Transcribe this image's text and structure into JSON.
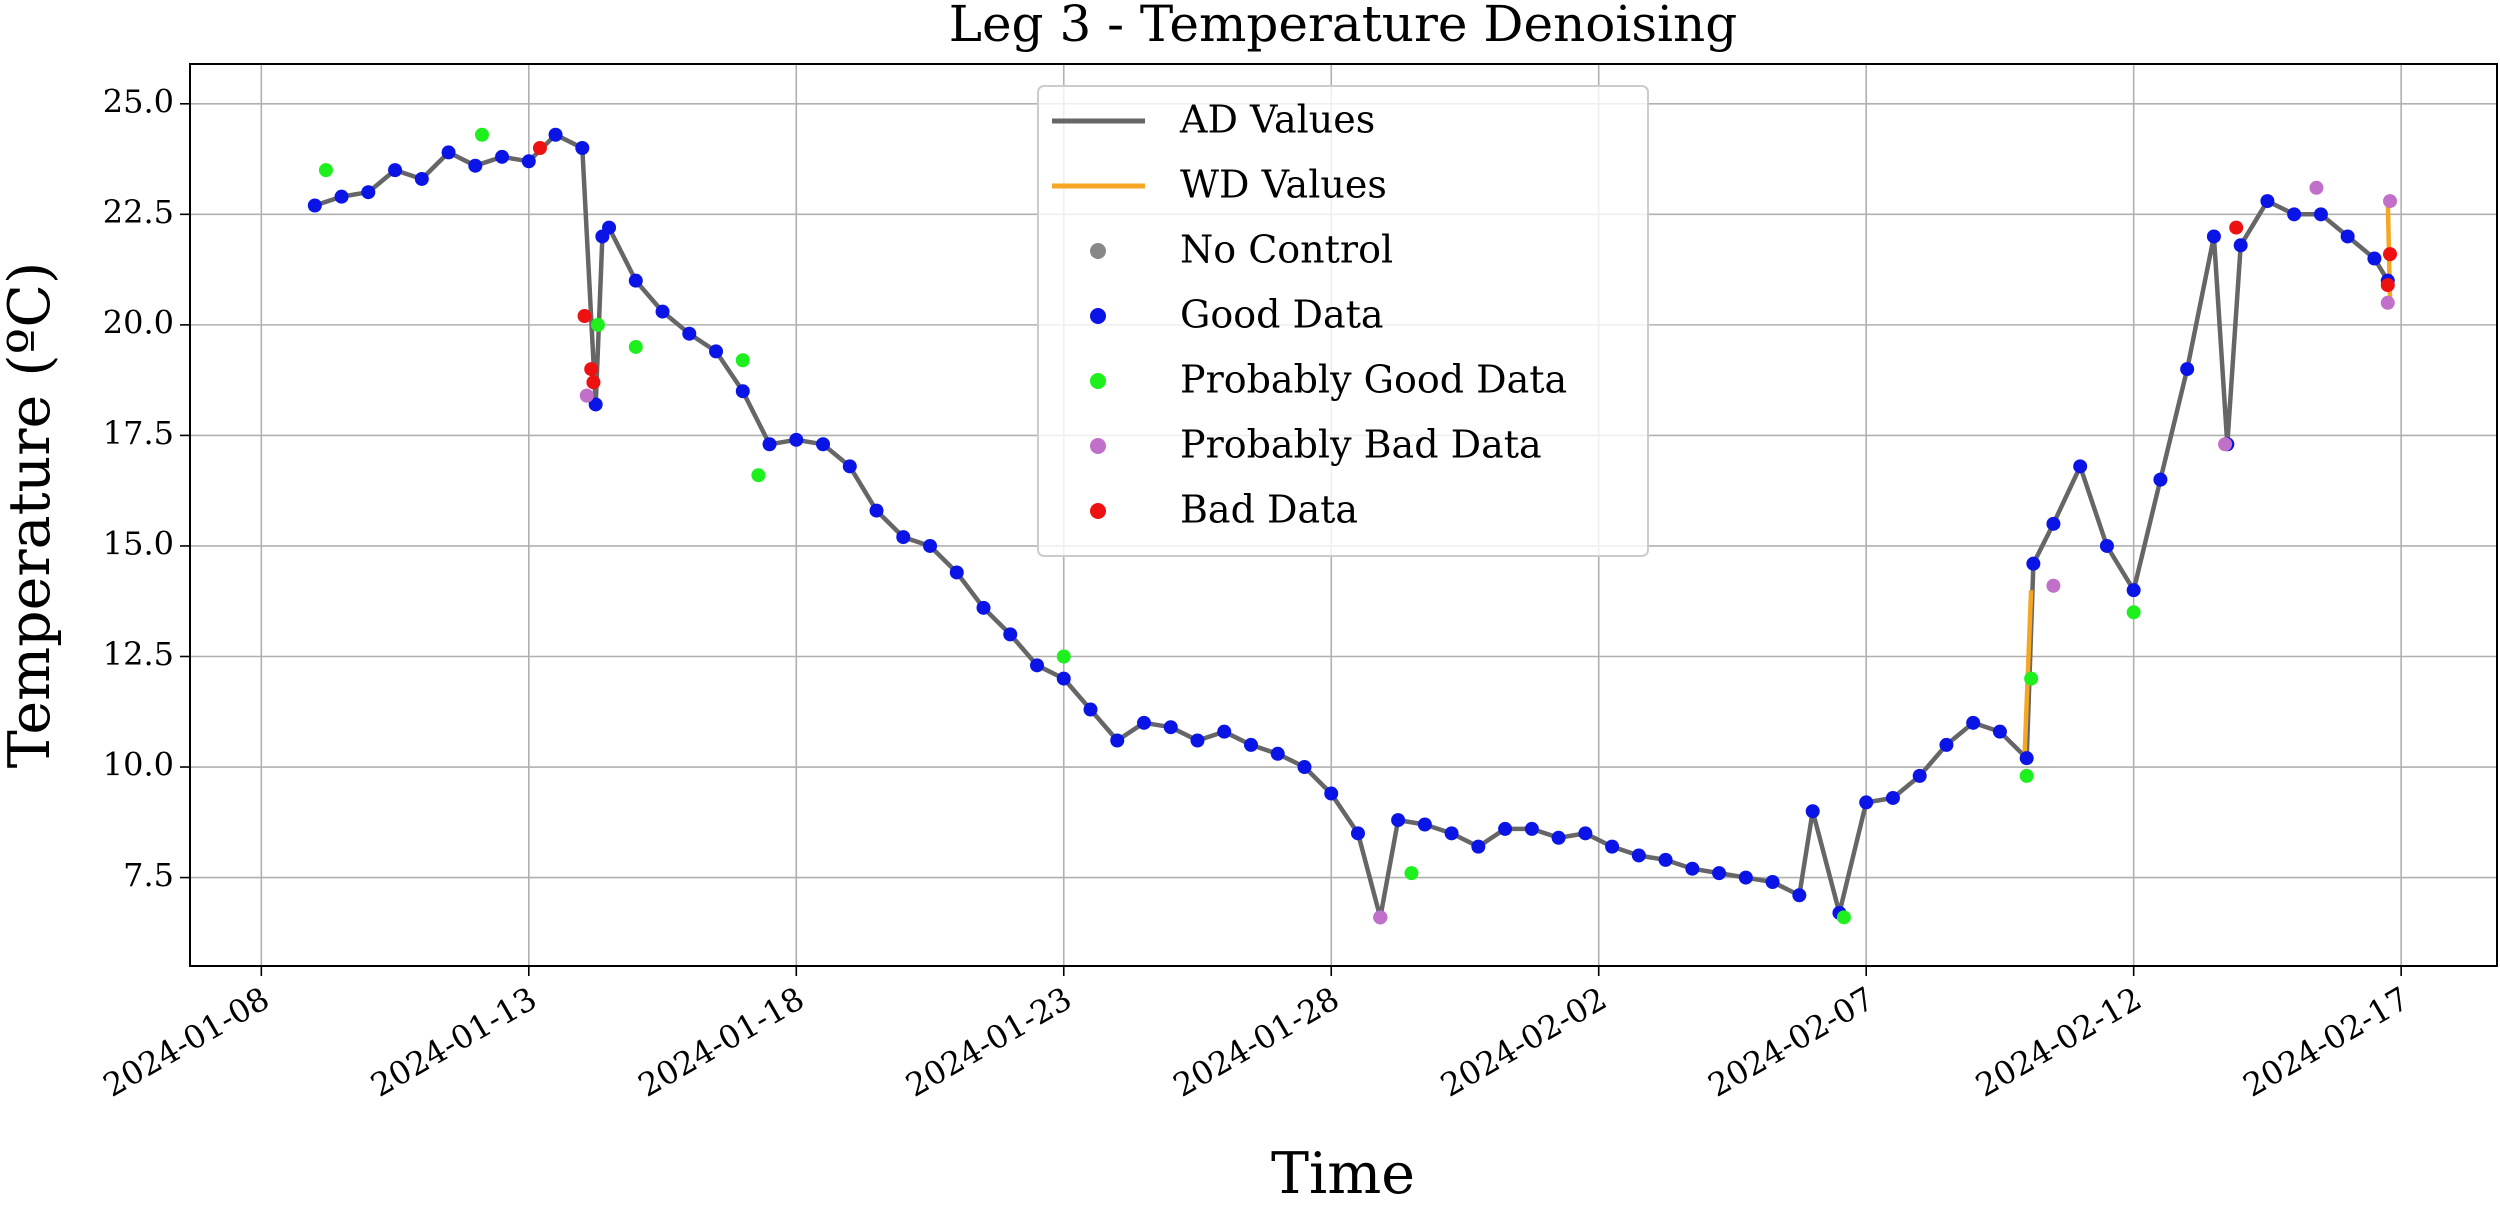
{
  "chart_data": {
    "type": "line",
    "title": "Leg 3 - Temperature Denoising",
    "xlabel": "Time",
    "ylabel": "Temperature (ºC)",
    "xlim": [
      "2024-01-06T16:00",
      "2024-02-18T19:00"
    ],
    "xticks": [
      "2024-01-08",
      "2024-01-13",
      "2024-01-18",
      "2024-01-23",
      "2024-01-28",
      "2024-02-02",
      "2024-02-07",
      "2024-02-12",
      "2024-02-17"
    ],
    "ylim": [
      5.5,
      25.9
    ],
    "yticks": [
      7.5,
      {
        "value": 10,
        "label": "10.0"
      },
      12.5,
      {
        "value": 15,
        "label": "15.0"
      },
      17.5,
      {
        "value": 20,
        "label": "20.0"
      },
      22.5,
      {
        "value": 25,
        "label": "25.0"
      }
    ],
    "grid": true,
    "legend": "upper center",
    "series": [
      {
        "name": "AD Values",
        "type": "line",
        "color": "#666666",
        "x": [
          "2024-01-09T00:00",
          "2024-01-09T12:00",
          "2024-01-10T00:00",
          "2024-01-10T12:00",
          "2024-01-11T00:00",
          "2024-01-11T12:00",
          "2024-01-12T00:00",
          "2024-01-12T12:00",
          "2024-01-13T00:00",
          "2024-01-13T12:00",
          "2024-01-14T00:00",
          "2024-01-14T06:00",
          "2024-01-14T09:00",
          "2024-01-14T12:00",
          "2024-01-15T00:00",
          "2024-01-15T12:00",
          "2024-01-16T00:00",
          "2024-01-16T12:00",
          "2024-01-17T00:00",
          "2024-01-17T12:00",
          "2024-01-18T00:00",
          "2024-01-18T12:00",
          "2024-01-19T00:00",
          "2024-01-19T12:00",
          "2024-01-20T00:00",
          "2024-01-20T12:00",
          "2024-01-21T00:00",
          "2024-01-21T12:00",
          "2024-01-22T00:00",
          "2024-01-22T12:00",
          "2024-01-23T00:00",
          "2024-01-23T12:00",
          "2024-01-24T00:00",
          "2024-01-24T12:00",
          "2024-01-25T00:00",
          "2024-01-25T12:00",
          "2024-01-26T00:00",
          "2024-01-26T12:00",
          "2024-01-27T00:00",
          "2024-01-27T12:00",
          "2024-01-28T00:00",
          "2024-01-28T12:00",
          "2024-01-28T22:00",
          "2024-01-29T06:00",
          "2024-01-29T18:00",
          "2024-01-30T06:00",
          "2024-01-30T18:00",
          "2024-01-31T06:00",
          "2024-01-31T18:00",
          "2024-02-01T06:00",
          "2024-02-01T18:00",
          "2024-02-02T06:00",
          "2024-02-02T18:00",
          "2024-02-03T06:00",
          "2024-02-03T18:00",
          "2024-02-04T06:00",
          "2024-02-04T18:00",
          "2024-02-05T06:00",
          "2024-02-05T18:00",
          "2024-02-06T00:00",
          "2024-02-06T12:00",
          "2024-02-07T00:00",
          "2024-02-07T12:00",
          "2024-02-08T00:00",
          "2024-02-08T12:00",
          "2024-02-09T00:00",
          "2024-02-09T12:00",
          "2024-02-10T00:00",
          "2024-02-10T03:00",
          "2024-02-10T12:00",
          "2024-02-11T00:00",
          "2024-02-11T12:00",
          "2024-02-12T00:00",
          "2024-02-12T12:00",
          "2024-02-13T00:00",
          "2024-02-13T12:00",
          "2024-02-13T18:00",
          "2024-02-14T00:00",
          "2024-02-14T12:00",
          "2024-02-15T00:00",
          "2024-02-15T12:00",
          "2024-02-16T00:00",
          "2024-02-16T12:00",
          "2024-02-16T18:00"
        ],
        "values": [
          22.7,
          22.9,
          23.0,
          23.5,
          23.3,
          23.9,
          23.6,
          23.8,
          23.7,
          24.3,
          24.0,
          18.2,
          22.0,
          22.2,
          21.0,
          20.3,
          19.8,
          19.4,
          18.5,
          17.3,
          17.4,
          17.3,
          16.8,
          15.8,
          15.2,
          15.0,
          14.4,
          13.6,
          13.0,
          12.3,
          12.0,
          11.3,
          10.6,
          11.0,
          10.9,
          10.6,
          10.8,
          10.5,
          10.3,
          10.0,
          9.4,
          8.5,
          6.6,
          8.8,
          8.7,
          8.5,
          8.2,
          8.6,
          8.6,
          8.4,
          8.5,
          8.2,
          8.0,
          7.9,
          7.7,
          7.6,
          7.5,
          7.4,
          7.1,
          9.0,
          6.7,
          9.2,
          9.3,
          9.8,
          10.5,
          11.0,
          10.8,
          10.2,
          14.6,
          15.5,
          16.8,
          15.0,
          14.0,
          16.5,
          19.0,
          22.0,
          17.3,
          21.8,
          22.8,
          22.5,
          22.5,
          22.0,
          21.5,
          21.0
        ]
      },
      {
        "name": "WD Values",
        "type": "line",
        "color": "#f5a623",
        "x": [
          "2024-02-09T23:00",
          "2024-02-10T02:00",
          null,
          "2024-02-16T18:00",
          "2024-02-16T19:00"
        ],
        "values": [
          10.2,
          14.0,
          null,
          22.8,
          20.6
        ]
      },
      {
        "name": "No Control",
        "type": "scatter",
        "color": "#888888",
        "x": [],
        "values": []
      },
      {
        "name": "Good Data",
        "type": "scatter",
        "color": "#0a14e6",
        "x": [
          "2024-01-09T00:00",
          "2024-01-09T12:00",
          "2024-01-10T00:00",
          "2024-01-10T12:00",
          "2024-01-11T00:00",
          "2024-01-11T12:00",
          "2024-01-12T00:00",
          "2024-01-12T12:00",
          "2024-01-13T00:00",
          "2024-01-13T12:00",
          "2024-01-14T00:00",
          "2024-01-14T06:00",
          "2024-01-14T09:00",
          "2024-01-14T12:00",
          "2024-01-15T00:00",
          "2024-01-15T12:00",
          "2024-01-16T00:00",
          "2024-01-16T12:00",
          "2024-01-17T00:00",
          "2024-01-17T12:00",
          "2024-01-18T00:00",
          "2024-01-18T12:00",
          "2024-01-19T00:00",
          "2024-01-19T12:00",
          "2024-01-20T00:00",
          "2024-01-20T12:00",
          "2024-01-21T00:00",
          "2024-01-21T12:00",
          "2024-01-22T00:00",
          "2024-01-22T12:00",
          "2024-01-23T00:00",
          "2024-01-23T12:00",
          "2024-01-24T00:00",
          "2024-01-24T12:00",
          "2024-01-25T00:00",
          "2024-01-25T12:00",
          "2024-01-26T00:00",
          "2024-01-26T12:00",
          "2024-01-27T00:00",
          "2024-01-27T12:00",
          "2024-01-28T00:00",
          "2024-01-28T12:00",
          "2024-01-28T22:00",
          "2024-01-29T06:00",
          "2024-01-29T18:00",
          "2024-01-30T06:00",
          "2024-01-30T18:00",
          "2024-01-31T06:00",
          "2024-01-31T18:00",
          "2024-02-01T06:00",
          "2024-02-01T18:00",
          "2024-02-02T06:00",
          "2024-02-02T18:00",
          "2024-02-03T06:00",
          "2024-02-03T18:00",
          "2024-02-04T06:00",
          "2024-02-04T18:00",
          "2024-02-05T06:00",
          "2024-02-05T18:00",
          "2024-02-06T00:00",
          "2024-02-06T12:00",
          "2024-02-07T00:00",
          "2024-02-07T12:00",
          "2024-02-08T00:00",
          "2024-02-08T12:00",
          "2024-02-09T00:00",
          "2024-02-09T12:00",
          "2024-02-10T00:00",
          "2024-02-10T03:00",
          "2024-02-10T12:00",
          "2024-02-11T00:00",
          "2024-02-11T12:00",
          "2024-02-12T00:00",
          "2024-02-12T12:00",
          "2024-02-13T00:00",
          "2024-02-13T12:00",
          "2024-02-13T18:00",
          "2024-02-14T00:00",
          "2024-02-14T12:00",
          "2024-02-15T00:00",
          "2024-02-15T12:00",
          "2024-02-16T00:00",
          "2024-02-16T12:00",
          "2024-02-16T18:00"
        ],
        "values": [
          22.7,
          22.9,
          23.0,
          23.5,
          23.3,
          23.9,
          23.6,
          23.8,
          23.7,
          24.3,
          24.0,
          18.2,
          22.0,
          22.2,
          21.0,
          20.3,
          19.8,
          19.4,
          18.5,
          17.3,
          17.4,
          17.3,
          16.8,
          15.8,
          15.2,
          15.0,
          14.4,
          13.6,
          13.0,
          12.3,
          12.0,
          11.3,
          10.6,
          11.0,
          10.9,
          10.6,
          10.8,
          10.5,
          10.3,
          10.0,
          9.4,
          8.5,
          6.6,
          8.8,
          8.7,
          8.5,
          8.2,
          8.6,
          8.6,
          8.4,
          8.5,
          8.2,
          8.0,
          7.9,
          7.7,
          7.6,
          7.5,
          7.4,
          7.1,
          9.0,
          6.7,
          9.2,
          9.3,
          9.8,
          10.5,
          11.0,
          10.8,
          10.2,
          14.6,
          15.5,
          16.8,
          15.0,
          14.0,
          16.5,
          19.0,
          22.0,
          17.3,
          21.8,
          22.8,
          22.5,
          22.5,
          22.0,
          21.5,
          21.0
        ]
      },
      {
        "name": "Probably Good Data",
        "type": "scatter",
        "color": "#1ef01e",
        "x": [
          "2024-01-09T05:00",
          "2024-01-12T03:00",
          "2024-01-14T07:00",
          "2024-01-15T00:00",
          "2024-01-17T00:00",
          "2024-01-17T07:00",
          "2024-01-23T00:00",
          "2024-01-29T12:00",
          "2024-02-06T14:00",
          "2024-02-10T00:00",
          "2024-02-10T02:00",
          "2024-02-12T00:00"
        ],
        "values": [
          23.5,
          24.3,
          20.0,
          19.5,
          19.2,
          16.6,
          12.5,
          7.6,
          6.6,
          9.8,
          12.0,
          13.5
        ]
      },
      {
        "name": "Probably Bad Data",
        "type": "scatter",
        "color": "#c070c8",
        "x": [
          "2024-01-14T02:00",
          "2024-01-28T22:00",
          "2024-02-10T12:00",
          "2024-02-13T17:00",
          "2024-02-15T10:00",
          "2024-02-16T19:00",
          "2024-02-16T18:00"
        ],
        "values": [
          18.4,
          6.6,
          14.1,
          17.3,
          23.1,
          22.8,
          20.5
        ]
      },
      {
        "name": "Bad Data",
        "type": "scatter",
        "color": "#ee1111",
        "x": [
          "2024-01-13T05:00",
          "2024-01-14T01:00",
          "2024-01-14T04:00",
          "2024-01-14T05:00",
          "2024-02-13T22:00",
          "2024-02-16T19:00",
          "2024-02-16T18:00"
        ],
        "values": [
          24.0,
          20.2,
          19.0,
          18.7,
          22.2,
          21.6,
          20.9
        ]
      }
    ]
  }
}
